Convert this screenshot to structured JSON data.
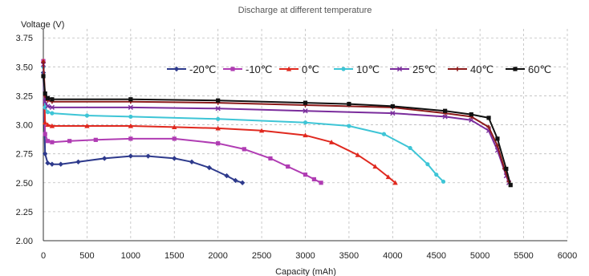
{
  "chart_data": {
    "type": "line",
    "title": "Discharge at different temperature",
    "xlabel": "Capacity (mAh)",
    "ylabel": "Voltage (V)",
    "xlim": [
      0,
      6000
    ],
    "ylim": [
      2.0,
      3.75
    ],
    "xticks": [
      0,
      500,
      1000,
      1500,
      2000,
      2500,
      3000,
      3500,
      4000,
      4500,
      5000,
      5500,
      6000
    ],
    "yticks": [
      2.0,
      2.25,
      2.5,
      2.75,
      3.0,
      3.25,
      3.5,
      3.75
    ],
    "ytick_labels": [
      "2.00",
      "2.25",
      "2.50",
      "2.75",
      "3.00",
      "3.25",
      "3.50",
      "3.75"
    ],
    "grid": "dashed",
    "legend_position": "top",
    "series": [
      {
        "name": "-20℃",
        "color": "#2e3a8c",
        "marker": "diamond",
        "x": [
          0,
          20,
          50,
          100,
          200,
          400,
          700,
          1000,
          1200,
          1500,
          1700,
          1900,
          2100,
          2200,
          2280
        ],
        "y": [
          3.45,
          2.75,
          2.67,
          2.66,
          2.66,
          2.68,
          2.71,
          2.73,
          2.73,
          2.71,
          2.68,
          2.63,
          2.56,
          2.52,
          2.5
        ]
      },
      {
        "name": "-10℃",
        "color": "#b03cb3",
        "marker": "square",
        "x": [
          0,
          20,
          50,
          100,
          300,
          600,
          1000,
          1500,
          2000,
          2300,
          2600,
          2800,
          3000,
          3100,
          3180
        ],
        "y": [
          3.55,
          2.92,
          2.86,
          2.85,
          2.86,
          2.87,
          2.88,
          2.88,
          2.84,
          2.79,
          2.71,
          2.64,
          2.57,
          2.53,
          2.5
        ]
      },
      {
        "name": "0℃",
        "color": "#e0291f",
        "marker": "triangle",
        "x": [
          0,
          20,
          50,
          100,
          500,
          1000,
          1500,
          2000,
          2500,
          3000,
          3300,
          3600,
          3800,
          3950,
          4030
        ],
        "y": [
          3.55,
          3.02,
          3.0,
          2.99,
          2.99,
          2.99,
          2.98,
          2.97,
          2.95,
          2.91,
          2.85,
          2.74,
          2.64,
          2.55,
          2.5
        ]
      },
      {
        "name": "10℃",
        "color": "#3ec5d6",
        "marker": "circle",
        "x": [
          0,
          20,
          50,
          100,
          500,
          1000,
          2000,
          3000,
          3500,
          3900,
          4200,
          4400,
          4500,
          4580
        ],
        "y": [
          3.5,
          3.15,
          3.11,
          3.1,
          3.08,
          3.07,
          3.05,
          3.02,
          2.99,
          2.92,
          2.8,
          2.66,
          2.57,
          2.51
        ]
      },
      {
        "name": "25℃",
        "color": "#7a2c9c",
        "marker": "cross",
        "x": [
          0,
          20,
          50,
          100,
          1000,
          2000,
          3000,
          4000,
          4600,
          4900,
          5100,
          5200,
          5300,
          5330
        ],
        "y": [
          3.52,
          3.2,
          3.16,
          3.15,
          3.15,
          3.14,
          3.12,
          3.1,
          3.07,
          3.04,
          2.95,
          2.78,
          2.56,
          2.5
        ]
      },
      {
        "name": "40℃",
        "color": "#8c1a1a",
        "marker": "plus",
        "x": [
          0,
          20,
          50,
          100,
          1000,
          2000,
          3000,
          4000,
          4600,
          4900,
          5100,
          5200,
          5280,
          5330
        ],
        "y": [
          3.54,
          3.25,
          3.21,
          3.2,
          3.2,
          3.19,
          3.17,
          3.15,
          3.1,
          3.07,
          2.98,
          2.82,
          2.62,
          2.51
        ]
      },
      {
        "name": "60℃",
        "color": "#111111",
        "marker": "square",
        "x": [
          0,
          20,
          50,
          100,
          1000,
          2000,
          3000,
          3500,
          4000,
          4600,
          4900,
          5100,
          5200,
          5300,
          5350
        ],
        "y": [
          3.42,
          3.27,
          3.23,
          3.22,
          3.22,
          3.21,
          3.19,
          3.18,
          3.16,
          3.12,
          3.09,
          3.06,
          2.88,
          2.62,
          2.48
        ]
      }
    ]
  }
}
